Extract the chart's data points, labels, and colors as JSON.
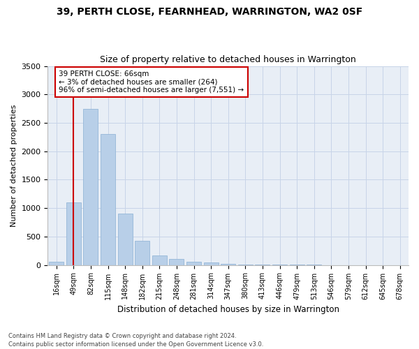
{
  "title": "39, PERTH CLOSE, FEARNHEAD, WARRINGTON, WA2 0SF",
  "subtitle": "Size of property relative to detached houses in Warrington",
  "xlabel": "Distribution of detached houses by size in Warrington",
  "ylabel": "Number of detached properties",
  "categories": [
    "16sqm",
    "49sqm",
    "82sqm",
    "115sqm",
    "148sqm",
    "182sqm",
    "215sqm",
    "248sqm",
    "281sqm",
    "314sqm",
    "347sqm",
    "380sqm",
    "413sqm",
    "446sqm",
    "479sqm",
    "513sqm",
    "546sqm",
    "579sqm",
    "612sqm",
    "645sqm",
    "678sqm"
  ],
  "values": [
    50,
    1100,
    2750,
    2300,
    900,
    420,
    170,
    100,
    60,
    40,
    20,
    10,
    5,
    3,
    2,
    1,
    0,
    0,
    0,
    0,
    0
  ],
  "bar_color": "#b8cfe8",
  "bar_edge_color": "#8aafd4",
  "vline_color": "#cc0000",
  "vline_x_index": 1,
  "annotation_title": "39 PERTH CLOSE: 66sqm",
  "annotation_line1": "← 3% of detached houses are smaller (264)",
  "annotation_line2": "96% of semi-detached houses are larger (7,551) →",
  "annotation_box_facecolor": "#ffffff",
  "annotation_box_edgecolor": "#cc0000",
  "ylim": [
    0,
    3500
  ],
  "yticks": [
    0,
    500,
    1000,
    1500,
    2000,
    2500,
    3000,
    3500
  ],
  "grid_color": "#c8d4e8",
  "plot_bg_color": "#e8eef6",
  "fig_bg_color": "#ffffff",
  "footnote1": "Contains HM Land Registry data © Crown copyright and database right 2024.",
  "footnote2": "Contains public sector information licensed under the Open Government Licence v3.0."
}
